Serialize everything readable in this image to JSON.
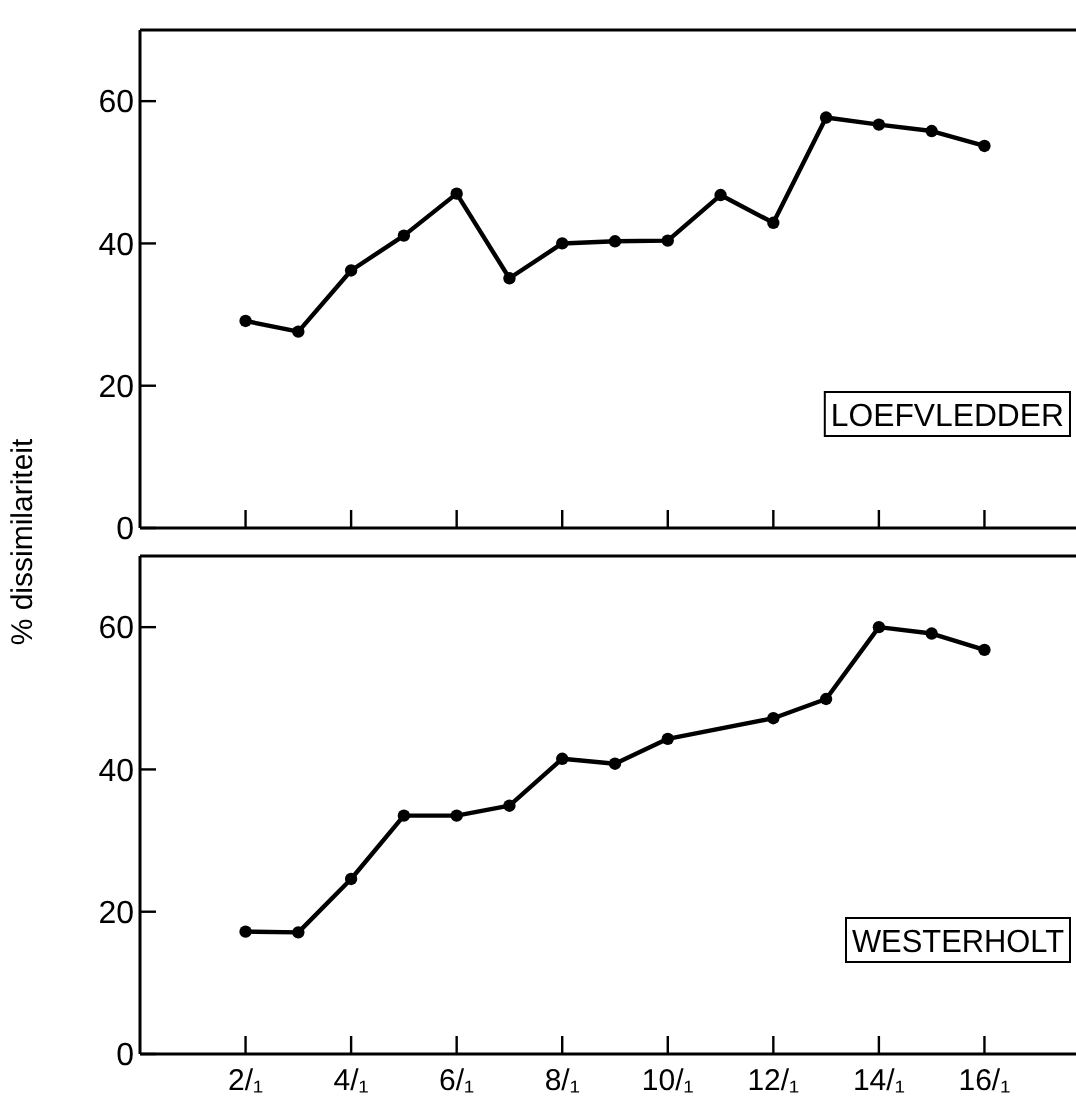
{
  "chart_data": [
    {
      "type": "line",
      "ylabel": "% dissimilariteit",
      "annotations": [
        "LOEFVLEDDER"
      ],
      "marker": "circle",
      "line_style": "solid",
      "tick_labels": "y",
      "xlim": [
        0,
        18
      ],
      "ylim": [
        0,
        70
      ],
      "yticks": [
        0,
        20,
        40,
        60
      ],
      "xticks": [
        {
          "value": 2,
          "label": null
        },
        {
          "value": 4,
          "label": null
        },
        {
          "value": 6,
          "label": null
        },
        {
          "value": 8,
          "label": null
        },
        {
          "value": 10,
          "label": null
        },
        {
          "value": 12,
          "label": null
        },
        {
          "value": 14,
          "label": null
        },
        {
          "value": 16,
          "label": null
        }
      ],
      "series": [
        {
          "color": "#000000",
          "x": [
            2,
            3,
            4,
            5,
            6,
            7,
            8,
            9,
            10,
            11,
            12,
            13,
            14,
            15,
            16
          ],
          "values": [
            29.1,
            27.6,
            36.2,
            41.1,
            47.0,
            35.1,
            40.0,
            40.3,
            40.4,
            46.8,
            42.9,
            57.7,
            56.7,
            55.8,
            53.7
          ]
        }
      ]
    },
    {
      "type": "line",
      "annotations": [
        "WESTERHOLT"
      ],
      "marker": "circle",
      "line_style": "solid",
      "xlim": [
        0,
        18
      ],
      "ylim": [
        0,
        70
      ],
      "yticks": [
        0,
        20,
        40,
        60
      ],
      "xticks": [
        {
          "value": 2,
          "label": "2/₁"
        },
        {
          "value": 4,
          "label": "4/₁"
        },
        {
          "value": 6,
          "label": "6/₁"
        },
        {
          "value": 8,
          "label": "8/₁"
        },
        {
          "value": 10,
          "label": "10/₁"
        },
        {
          "value": 12,
          "label": "12/₁"
        },
        {
          "value": 14,
          "label": "14/₁"
        },
        {
          "value": 16,
          "label": "16/₁"
        }
      ],
      "series": [
        {
          "color": "#000000",
          "x": [
            2,
            3,
            4,
            5,
            6,
            7,
            8,
            9,
            10,
            12,
            13,
            14,
            15,
            16
          ],
          "values": [
            17.2,
            17.1,
            24.6,
            33.5,
            33.5,
            34.9,
            41.5,
            40.8,
            44.3,
            47.2,
            49.9,
            60.0,
            59.1,
            56.8
          ]
        }
      ]
    }
  ]
}
